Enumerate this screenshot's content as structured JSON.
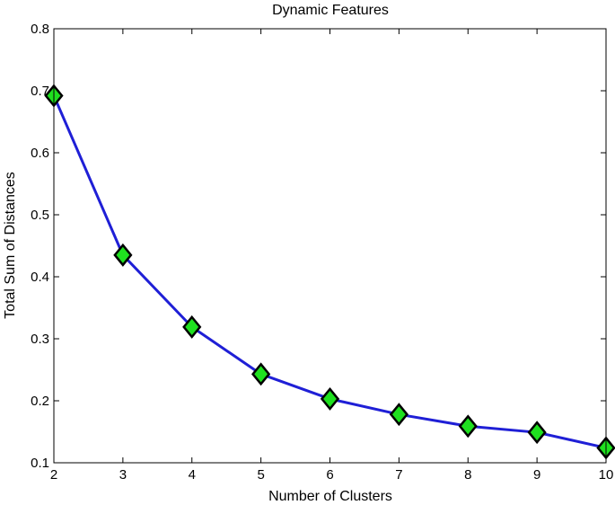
{
  "chart_data": {
    "type": "line",
    "title": "Dynamic Features",
    "xlabel": "Number of Clusters",
    "ylabel": "Total Sum of Distances",
    "xlim": [
      2,
      10
    ],
    "ylim": [
      0.1,
      0.8
    ],
    "xticks": [
      2,
      3,
      4,
      5,
      6,
      7,
      8,
      9,
      10
    ],
    "yticks": [
      0.1,
      0.2,
      0.3,
      0.4,
      0.5,
      0.6,
      0.7,
      0.8
    ],
    "grid": false,
    "series": [
      {
        "x": [
          2,
          3,
          4,
          5,
          6,
          7,
          8,
          9,
          10
        ],
        "values": [
          0.692,
          0.435,
          0.319,
          0.243,
          0.203,
          0.178,
          0.159,
          0.149,
          0.124
        ],
        "line_color": "#1f1fd6",
        "marker": "diamond",
        "marker_color": "#1fe01f",
        "marker_edge_color": "#000000"
      }
    ]
  }
}
